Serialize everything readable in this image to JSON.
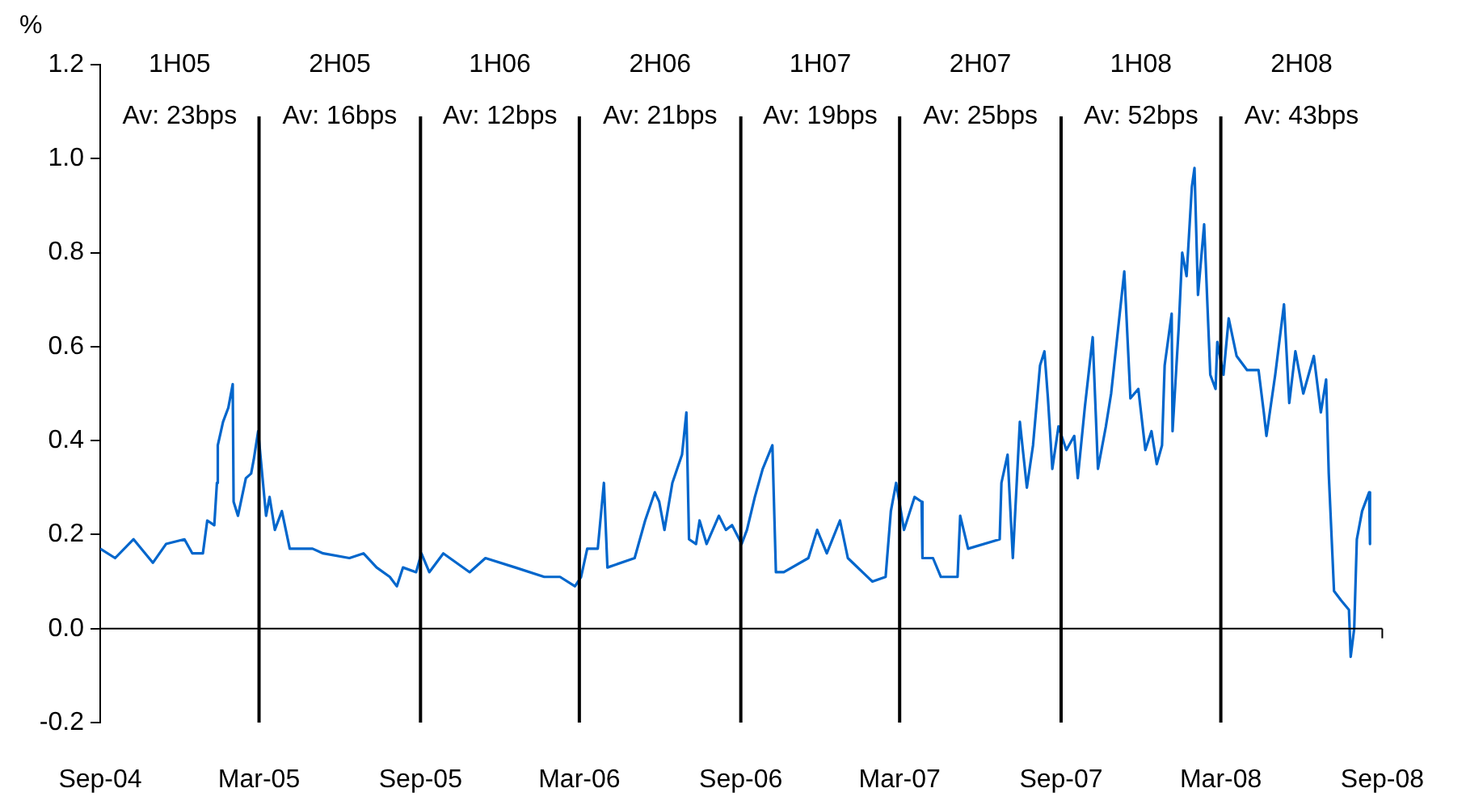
{
  "chart_data": {
    "type": "line",
    "ylabel": "%",
    "x": [
      "2004-09-01",
      "2004-09-18",
      "2004-10-09",
      "2004-10-31",
      "2004-11-15",
      "2004-12-06",
      "2004-12-15",
      "2004-12-27",
      "2005-01-01",
      "2005-01-09",
      "2005-01-12",
      "2005-01-13",
      "2005-01-19",
      "2005-01-25",
      "2005-01-30",
      "2005-01-31",
      "2005-02-05",
      "2005-02-14",
      "2005-02-20",
      "2005-02-23",
      "2005-02-28",
      "2005-03-03",
      "2005-03-09",
      "2005-03-13",
      "2005-03-19",
      "2005-03-27",
      "2005-04-05",
      "2005-05-01",
      "2005-05-13",
      "2005-06-12",
      "2005-06-28",
      "2005-07-13",
      "2005-07-28",
      "2005-08-05",
      "2005-08-12",
      "2005-08-27",
      "2005-09-02",
      "2005-09-11",
      "2005-09-27",
      "2005-10-27",
      "2005-11-14",
      "2005-12-18",
      "2006-01-20",
      "2006-02-07",
      "2006-02-24",
      "2006-03-03",
      "2006-03-10",
      "2006-03-22",
      "2006-03-29",
      "2006-04-02",
      "2006-05-03",
      "2006-05-15",
      "2006-05-26",
      "2006-05-31",
      "2006-06-06",
      "2006-06-15",
      "2006-06-26",
      "2006-07-01",
      "2006-07-04",
      "2006-07-12",
      "2006-07-16",
      "2006-07-24",
      "2006-08-07",
      "2006-08-15",
      "2006-08-22",
      "2006-09-02",
      "2006-09-08",
      "2006-09-17",
      "2006-09-26",
      "2006-10-07",
      "2006-10-11",
      "2006-10-20",
      "2006-11-17",
      "2006-11-27",
      "2006-12-08",
      "2006-12-23",
      "2007-01-01",
      "2007-01-29",
      "2007-02-13",
      "2007-02-19",
      "2007-02-25",
      "2007-03-06",
      "2007-03-18",
      "2007-03-26",
      "2007-03-27",
      "2007-04-08",
      "2007-04-17",
      "2007-05-06",
      "2007-05-09",
      "2007-05-18",
      "2007-06-23",
      "2007-06-25",
      "2007-07-02",
      "2007-07-08",
      "2007-07-16",
      "2007-07-24",
      "2007-07-31",
      "2007-08-08",
      "2007-08-13",
      "2007-08-17",
      "2007-08-22",
      "2007-08-29",
      "2007-09-07",
      "2007-09-16",
      "2007-09-20",
      "2007-09-28",
      "2007-10-07",
      "2007-10-13",
      "2007-10-22",
      "2007-10-28",
      "2007-11-12",
      "2007-11-19",
      "2007-11-28",
      "2007-12-06",
      "2007-12-13",
      "2007-12-19",
      "2007-12-25",
      "2007-12-28",
      "2008-01-05",
      "2008-01-06",
      "2008-01-13",
      "2008-01-17",
      "2008-01-22",
      "2008-01-28",
      "2008-01-31",
      "2008-02-04",
      "2008-02-11",
      "2008-02-18",
      "2008-02-24",
      "2008-02-26",
      "2008-03-04",
      "2008-03-10",
      "2008-03-19",
      "2008-03-31",
      "2008-04-13",
      "2008-04-19",
      "2008-04-22",
      "2008-05-02",
      "2008-05-12",
      "2008-05-18",
      "2008-05-25",
      "2008-06-03",
      "2008-06-15",
      "2008-06-23",
      "2008-06-29",
      "2008-07-02",
      "2008-07-08",
      "2008-07-16",
      "2008-07-25",
      "2008-07-27",
      "2008-07-31",
      "2008-08-03",
      "2008-08-09",
      "2008-08-17",
      "2008-08-18"
    ],
    "series": [
      {
        "color": "#0066cc",
        "values": [
          0.17,
          0.15,
          0.19,
          0.14,
          0.18,
          0.19,
          0.16,
          0.16,
          0.23,
          0.22,
          0.31,
          0.39,
          0.44,
          0.47,
          0.52,
          0.27,
          0.24,
          0.32,
          0.33,
          0.36,
          0.42,
          0.36,
          0.24,
          0.28,
          0.21,
          0.25,
          0.17,
          0.17,
          0.16,
          0.15,
          0.16,
          0.13,
          0.11,
          0.09,
          0.13,
          0.12,
          0.16,
          0.12,
          0.16,
          0.12,
          0.15,
          0.13,
          0.11,
          0.11,
          0.09,
          0.11,
          0.17,
          0.17,
          0.31,
          0.13,
          0.15,
          0.23,
          0.29,
          0.27,
          0.21,
          0.31,
          0.37,
          0.46,
          0.19,
          0.18,
          0.23,
          0.18,
          0.24,
          0.21,
          0.22,
          0.18,
          0.21,
          0.28,
          0.34,
          0.39,
          0.12,
          0.12,
          0.15,
          0.21,
          0.16,
          0.23,
          0.15,
          0.1,
          0.11,
          0.25,
          0.31,
          0.21,
          0.28,
          0.27,
          0.15,
          0.15,
          0.11,
          0.11,
          0.24,
          0.17,
          0.19,
          0.31,
          0.37,
          0.15,
          0.44,
          0.3,
          0.39,
          0.56,
          0.59,
          0.49,
          0.34,
          0.43,
          0.38,
          0.41,
          0.32,
          0.47,
          0.62,
          0.34,
          0.43,
          0.5,
          0.76,
          0.49,
          0.51,
          0.38,
          0.42,
          0.35,
          0.39,
          0.56,
          0.67,
          0.42,
          0.64,
          0.8,
          0.75,
          0.94,
          0.98,
          0.71,
          0.86,
          0.54,
          0.51,
          0.61,
          0.54,
          0.66,
          0.58,
          0.55,
          0.55,
          0.46,
          0.41,
          0.54,
          0.69,
          0.48,
          0.59,
          0.5,
          0.58,
          0.46,
          0.53,
          0.33,
          0.08,
          0.06,
          0.04,
          -0.06,
          0.0,
          0.19,
          0.25,
          0.29,
          0.18
        ]
      }
    ],
    "xlim": [
      "2004-09-01",
      "2008-09-01"
    ],
    "xticks": [
      {
        "value": "2004-09-01",
        "label": "Sep-04"
      },
      {
        "value": "2005-03-01",
        "label": "Mar-05"
      },
      {
        "value": "2005-09-01",
        "label": "Sep-05"
      },
      {
        "value": "2006-03-01",
        "label": "Mar-06"
      },
      {
        "value": "2006-09-01",
        "label": "Sep-06"
      },
      {
        "value": "2007-03-01",
        "label": "Mar-07"
      },
      {
        "value": "2007-09-01",
        "label": "Sep-07"
      },
      {
        "value": "2008-03-01",
        "label": "Mar-08"
      },
      {
        "value": "2008-09-01",
        "label": "Sep-08"
      }
    ],
    "ylim": [
      -0.2,
      1.2
    ],
    "yticks": [
      {
        "value": -0.2,
        "label": "-0.2"
      },
      {
        "value": 0,
        "label": "0.0"
      },
      {
        "value": 0.2,
        "label": "0.2"
      },
      {
        "value": 0.4,
        "label": "0.4"
      },
      {
        "value": 0.6,
        "label": "0.6"
      },
      {
        "value": 0.8,
        "label": "0.8"
      },
      {
        "value": 1,
        "label": "1.0"
      },
      {
        "value": 1.2,
        "label": "1.2"
      }
    ],
    "ref_lines": [
      {
        "axis": "x",
        "value": "2005-03-01",
        "color": "#000000"
      },
      {
        "axis": "x",
        "value": "2005-09-01",
        "color": "#000000"
      },
      {
        "axis": "x",
        "value": "2006-03-01",
        "color": "#000000"
      },
      {
        "axis": "x",
        "value": "2006-09-01",
        "color": "#000000"
      },
      {
        "axis": "x",
        "value": "2007-03-01",
        "color": "#000000"
      },
      {
        "axis": "x",
        "value": "2007-09-01",
        "color": "#000000"
      },
      {
        "axis": "x",
        "value": "2008-03-01",
        "color": "#000000"
      }
    ],
    "annotations": [
      "1H05",
      "Av: 23bps",
      "2H05",
      "Av: 16bps",
      "1H06",
      "Av: 12bps",
      "2H06",
      "Av: 21bps",
      "1H07",
      "Av: 19bps",
      "2H07",
      "Av: 25bps",
      "1H08",
      "Av: 52bps",
      "2H08",
      "Av: 43bps"
    ],
    "grid": false,
    "legend": false,
    "marker": "none",
    "line_style": "solid"
  }
}
